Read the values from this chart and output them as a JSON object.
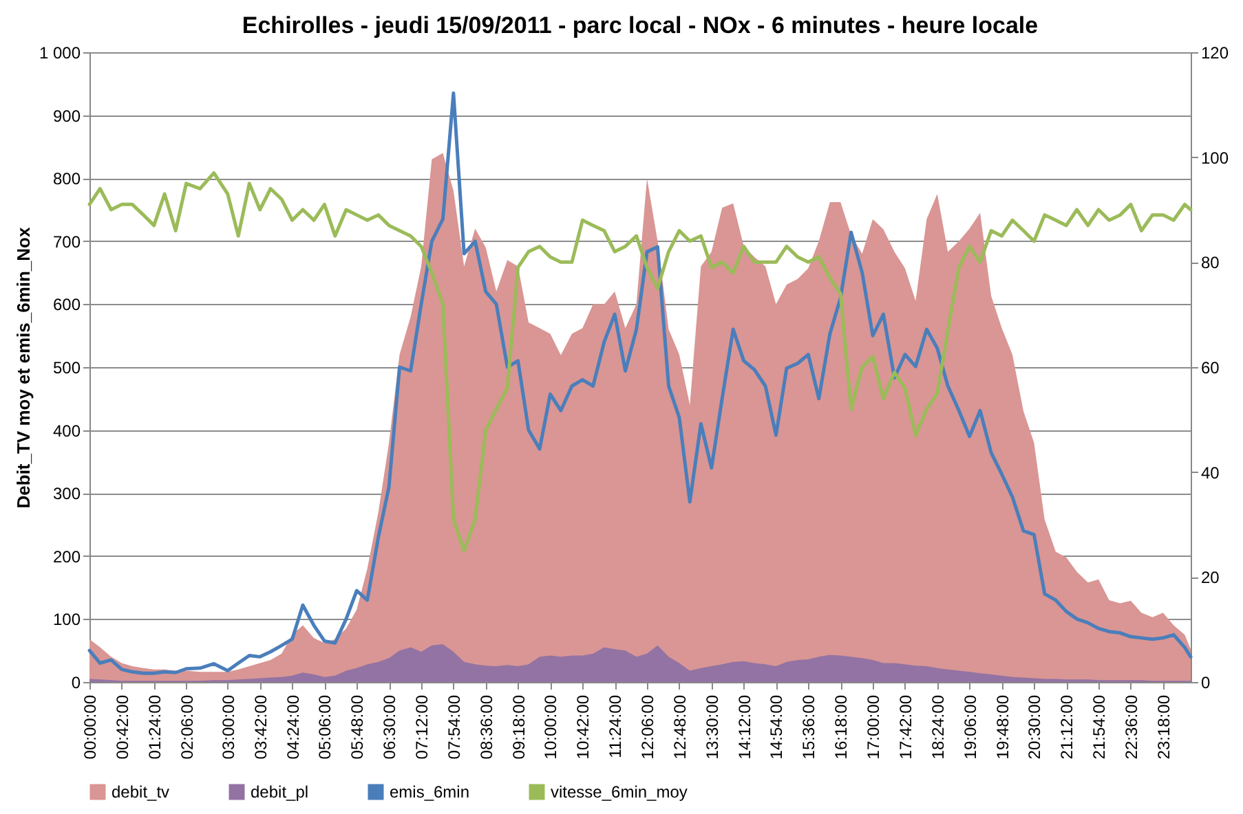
{
  "chart_data": {
    "type": "line",
    "title": "Echirolles -  jeudi 15/09/2011 - parc local - NOx - 6 minutes - heure locale",
    "ylabel": "Debit_TV moy et emis_6min_Nox",
    "x": [
      0,
      0.23,
      0.47,
      0.7,
      0.93,
      1.17,
      1.4,
      1.63,
      1.87,
      2.1,
      2.4,
      2.7,
      3,
      3.23,
      3.47,
      3.7,
      3.93,
      4.17,
      4.4,
      4.63,
      4.87,
      5.1,
      5.33,
      5.57,
      5.8,
      6.03,
      6.27,
      6.5,
      6.73,
      6.97,
      7.2,
      7.43,
      7.67,
      7.9,
      8.13,
      8.37,
      8.6,
      8.83,
      9.07,
      9.3,
      9.53,
      9.77,
      10,
      10.23,
      10.47,
      10.7,
      10.93,
      11.17,
      11.4,
      11.63,
      11.87,
      12.1,
      12.33,
      12.57,
      12.8,
      13.03,
      13.27,
      13.5,
      13.73,
      13.97,
      14.2,
      14.43,
      14.67,
      14.9,
      15.13,
      15.37,
      15.6,
      15.83,
      16.07,
      16.3,
      16.53,
      16.77,
      17,
      17.23,
      17.47,
      17.7,
      17.93,
      18.17,
      18.4,
      18.63,
      18.87,
      19.1,
      19.33,
      19.57,
      19.8,
      20.03,
      20.27,
      20.5,
      20.73,
      20.97,
      21.2,
      21.43,
      21.67,
      21.9,
      22.13,
      22.37,
      22.6,
      22.83,
      23.07,
      23.3,
      23.53,
      23.77,
      23.9
    ],
    "series": [
      {
        "name": "debit_tv",
        "type": "area",
        "color": "#d99694",
        "values": [
          68,
          55,
          40,
          30,
          25,
          22,
          20,
          20,
          18,
          18,
          16,
          16,
          16,
          20,
          25,
          30,
          35,
          45,
          75,
          90,
          70,
          62,
          68,
          85,
          115,
          180,
          270,
          380,
          520,
          580,
          660,
          830,
          840,
          780,
          660,
          720,
          690,
          620,
          670,
          660,
          571,
          562,
          553,
          519,
          553,
          562,
          600,
          600,
          620,
          562,
          600,
          800,
          700,
          560,
          520,
          440,
          660,
          683,
          753,
          760,
          692,
          675,
          660,
          600,
          631,
          640,
          657,
          700,
          762,
          762,
          710,
          680,
          735,
          719,
          683,
          657,
          605,
          735,
          775,
          683,
          700,
          720,
          745,
          613,
          562,
          520,
          430,
          380,
          258,
          207,
          198,
          175,
          158,
          163,
          130,
          125,
          129,
          110,
          103,
          110,
          90,
          75,
          52
        ]
      },
      {
        "name": "debit_pl",
        "type": "area",
        "color": "#9373a3",
        "values": [
          5,
          4,
          3,
          2,
          2,
          2,
          2,
          2,
          2,
          2,
          2,
          3,
          3,
          4,
          5,
          6,
          7,
          8,
          10,
          15,
          12,
          8,
          10,
          18,
          22,
          28,
          32,
          38,
          50,
          55,
          48,
          58,
          60,
          48,
          32,
          28,
          26,
          25,
          27,
          25,
          28,
          40,
          42,
          40,
          42,
          42,
          45,
          55,
          52,
          50,
          40,
          45,
          58,
          40,
          30,
          18,
          22,
          25,
          28,
          32,
          33,
          30,
          28,
          25,
          32,
          35,
          36,
          40,
          43,
          42,
          40,
          38,
          35,
          30,
          30,
          28,
          26,
          25,
          22,
          20,
          18,
          16,
          14,
          12,
          10,
          8,
          7,
          6,
          5,
          5,
          4,
          4,
          4,
          3,
          3,
          3,
          3,
          3,
          2,
          2,
          2,
          2,
          2
        ]
      },
      {
        "name": "emis_6min",
        "color": "#4a7ebb",
        "values": [
          50,
          30,
          35,
          20,
          16,
          14,
          14,
          16,
          15,
          21,
          22,
          29,
          18,
          30,
          42,
          40,
          48,
          58,
          68,
          122,
          90,
          65,
          62,
          100,
          145,
          130,
          230,
          310,
          500,
          494,
          600,
          700,
          735,
          935,
          680,
          700,
          620,
          600,
          500,
          510,
          400,
          370,
          457,
          431,
          470,
          480,
          470,
          540,
          584,
          494,
          560,
          683,
          691,
          470,
          420,
          286,
          410,
          340,
          450,
          560,
          510,
          496,
          470,
          392,
          498,
          506,
          520,
          450,
          553,
          610,
          714,
          650,
          550,
          584,
          483,
          520,
          501,
          560,
          530,
          470,
          431,
          390,
          431,
          364,
          330,
          294,
          240,
          234,
          140,
          130,
          112,
          100,
          94,
          85,
          80,
          78,
          72,
          70,
          68,
          70,
          75,
          55,
          40
        ]
      },
      {
        "name": "vitesse_6min_moy",
        "axis": "y2",
        "color": "#9bbb59",
        "values": [
          91,
          94,
          90,
          91,
          91,
          89,
          87,
          93,
          86,
          95,
          94,
          97,
          93,
          85,
          95,
          90,
          94,
          92,
          88,
          90,
          88,
          91,
          85,
          90,
          89,
          88,
          89,
          87,
          86,
          85,
          83,
          78,
          72,
          31,
          25,
          31,
          48,
          52,
          56,
          79,
          82,
          83,
          81,
          80,
          80,
          88,
          87,
          86,
          82,
          83,
          85,
          79,
          75,
          82,
          86,
          84,
          85,
          79,
          80,
          78,
          83,
          80,
          80,
          80,
          83,
          81,
          80,
          81,
          77,
          74,
          52,
          60,
          62,
          54,
          59,
          56,
          47,
          52,
          55,
          67,
          79,
          83,
          80,
          86,
          85,
          88,
          86,
          84,
          89,
          88,
          87,
          90,
          87,
          90,
          88,
          89,
          91,
          86,
          89,
          89,
          88,
          91,
          90
        ]
      }
    ],
    "xlim": [
      0,
      23.9
    ],
    "xticks": [
      {
        "value": 0,
        "label": "00:00:00"
      },
      {
        "value": 0.7,
        "label": "00:42:00"
      },
      {
        "value": 1.4,
        "label": "01:24:00"
      },
      {
        "value": 2.1,
        "label": "02:06:00"
      },
      {
        "value": 3,
        "label": "03:00:00"
      },
      {
        "value": 3.7,
        "label": "03:42:00"
      },
      {
        "value": 4.4,
        "label": "04:24:00"
      },
      {
        "value": 5.1,
        "label": "05:06:00"
      },
      {
        "value": 5.8,
        "label": "05:48:00"
      },
      {
        "value": 6.5,
        "label": "06:30:00"
      },
      {
        "value": 7.2,
        "label": "07:12:00"
      },
      {
        "value": 7.9,
        "label": "07:54:00"
      },
      {
        "value": 8.6,
        "label": "08:36:00"
      },
      {
        "value": 9.3,
        "label": "09:18:00"
      },
      {
        "value": 10,
        "label": "10:00:00"
      },
      {
        "value": 10.7,
        "label": "10:42:00"
      },
      {
        "value": 11.4,
        "label": "11:24:00"
      },
      {
        "value": 12.1,
        "label": "12:06:00"
      },
      {
        "value": 12.8,
        "label": "12:48:00"
      },
      {
        "value": 13.5,
        "label": "13:30:00"
      },
      {
        "value": 14.2,
        "label": "14:12:00"
      },
      {
        "value": 14.9,
        "label": "14:54:00"
      },
      {
        "value": 15.6,
        "label": "15:36:00"
      },
      {
        "value": 16.3,
        "label": "16:18:00"
      },
      {
        "value": 17,
        "label": "17:00:00"
      },
      {
        "value": 17.7,
        "label": "17:42:00"
      },
      {
        "value": 18.4,
        "label": "18:24:00"
      },
      {
        "value": 19.1,
        "label": "19:06:00"
      },
      {
        "value": 19.8,
        "label": "19:48:00"
      },
      {
        "value": 20.5,
        "label": "20:30:00"
      },
      {
        "value": 21.2,
        "label": "21:12:00"
      },
      {
        "value": 21.9,
        "label": "21:54:00"
      },
      {
        "value": 22.6,
        "label": "22:36:00"
      },
      {
        "value": 23.3,
        "label": "23:18:00"
      }
    ],
    "ylim": [
      0,
      1000
    ],
    "yticks": [
      0,
      100,
      200,
      300,
      400,
      500,
      600,
      700,
      800,
      900,
      {
        "value": 1000,
        "label": "1 000"
      }
    ],
    "y2lim": [
      0,
      120
    ],
    "y2ticks": [
      0,
      20,
      40,
      60,
      80,
      100,
      120
    ],
    "grid": "y",
    "legend": "bottom"
  }
}
